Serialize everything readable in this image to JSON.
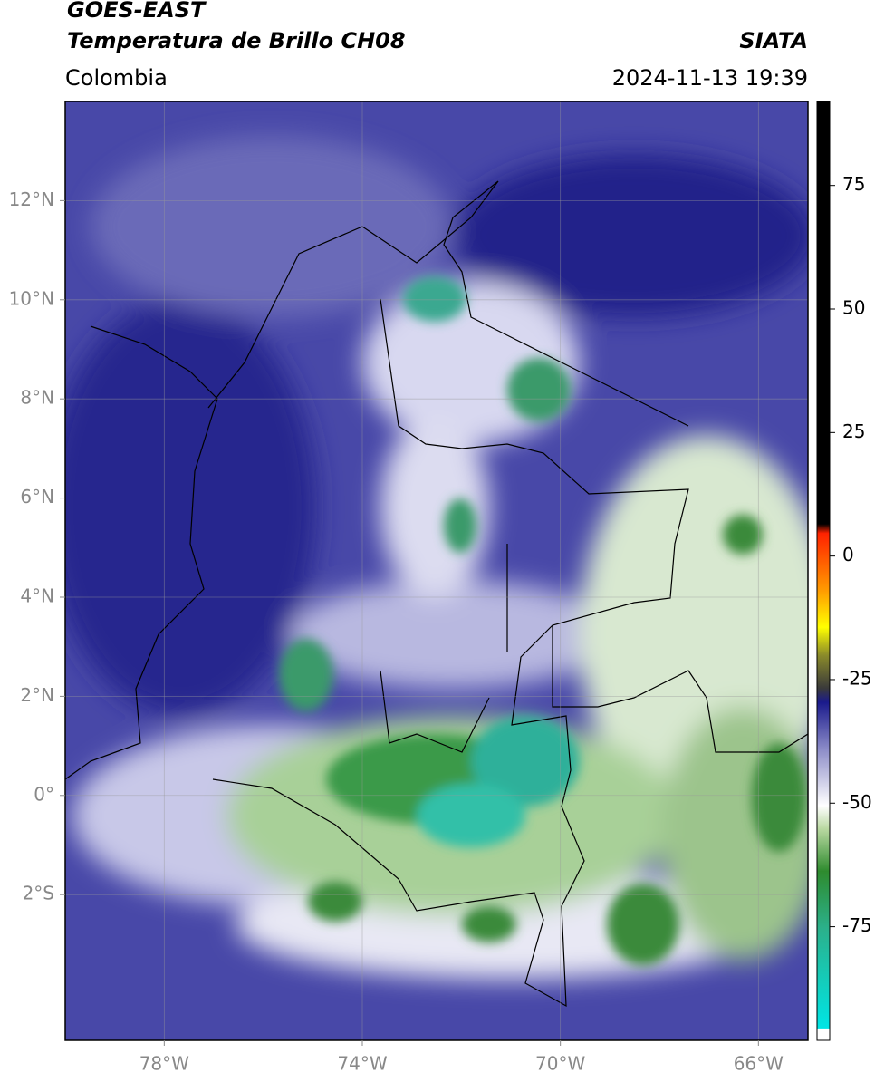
{
  "header": {
    "title": "GOES-EAST",
    "subtitle": "Temperatura de Brillo CH08",
    "source": "SIATA",
    "region": "Colombia",
    "datetime": "2024-11-13 19:39"
  },
  "map": {
    "lon_range": [
      -80,
      -65
    ],
    "lat_range": [
      -4.94,
      14
    ],
    "lon_ticks": [
      {
        "value": -78,
        "label": "78°W"
      },
      {
        "value": -74,
        "label": "74°W"
      },
      {
        "value": -70,
        "label": "70°W"
      },
      {
        "value": -66,
        "label": "66°W"
      }
    ],
    "lat_ticks": [
      {
        "value": 12,
        "label": "12°N"
      },
      {
        "value": 10,
        "label": "10°N"
      },
      {
        "value": 8,
        "label": "8°N"
      },
      {
        "value": 6,
        "label": "6°N"
      },
      {
        "value": 4,
        "label": "4°N"
      },
      {
        "value": 2,
        "label": "2°N"
      },
      {
        "value": 0,
        "label": "0°"
      },
      {
        "value": -2,
        "label": "2°S"
      }
    ],
    "grid": true
  },
  "colorbar": {
    "lim": [
      -98,
      92
    ],
    "ticks": [
      75,
      50,
      25,
      0,
      -25,
      -50,
      -75
    ]
  }
}
